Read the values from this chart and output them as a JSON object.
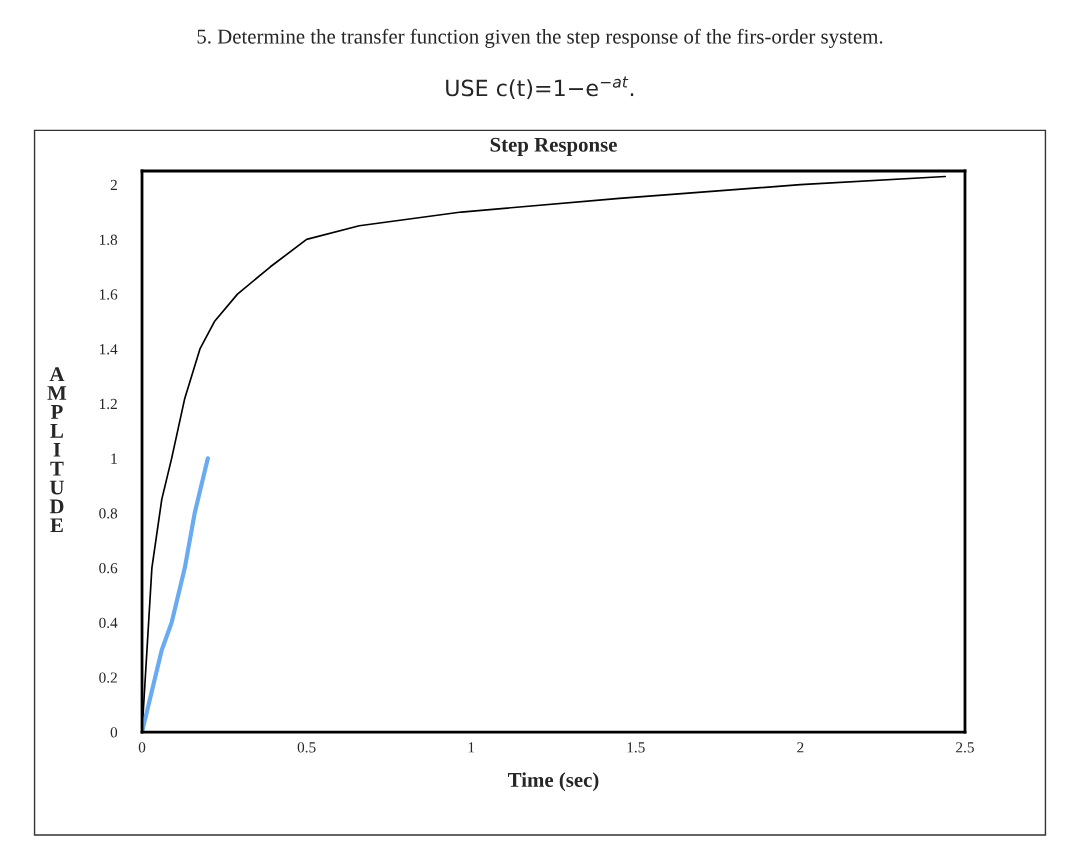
{
  "chart_data": {
    "type": "line",
    "title": "Step Response",
    "xlabel": "Time (sec)",
    "ylabel": "AMPLITUDE",
    "annotations": [
      "5. Determine the transfer function given the step response of the firs-order system.",
      "USE c(t)=1−e$^{−at}$."
    ],
    "series": [
      {
        "color": "#000000",
        "x": [
          0,
          0.03,
          0.06,
          0.09,
          0.13,
          0.176,
          0.22,
          0.29,
          0.39,
          0.5,
          0.66,
          0.97,
          1.45,
          2.0,
          2.44
        ],
        "values": [
          0,
          0.6,
          0.85,
          1.0,
          1.22,
          1.4,
          1.5,
          1.6,
          1.7,
          1.8,
          1.85,
          1.9,
          1.95,
          2.0,
          2.03
        ]
      },
      {
        "color": "#6aaaf0",
        "x": [
          0,
          0.04,
          0.06,
          0.09,
          0.13,
          0.16,
          0.2
        ],
        "values": [
          0,
          0.2,
          0.3,
          0.4,
          0.6,
          0.8,
          1.0
        ]
      }
    ],
    "xlim": [
      0,
      2.5
    ],
    "xticks": [
      0,
      0.5,
      1,
      1.5,
      2,
      2.5
    ],
    "ylim": [
      0,
      2.05
    ],
    "yticks": [
      0,
      0.2,
      0.4,
      0.6,
      0.8,
      1,
      1.2,
      1.4,
      1.6,
      1.8,
      2
    ],
    "grid": false
  }
}
